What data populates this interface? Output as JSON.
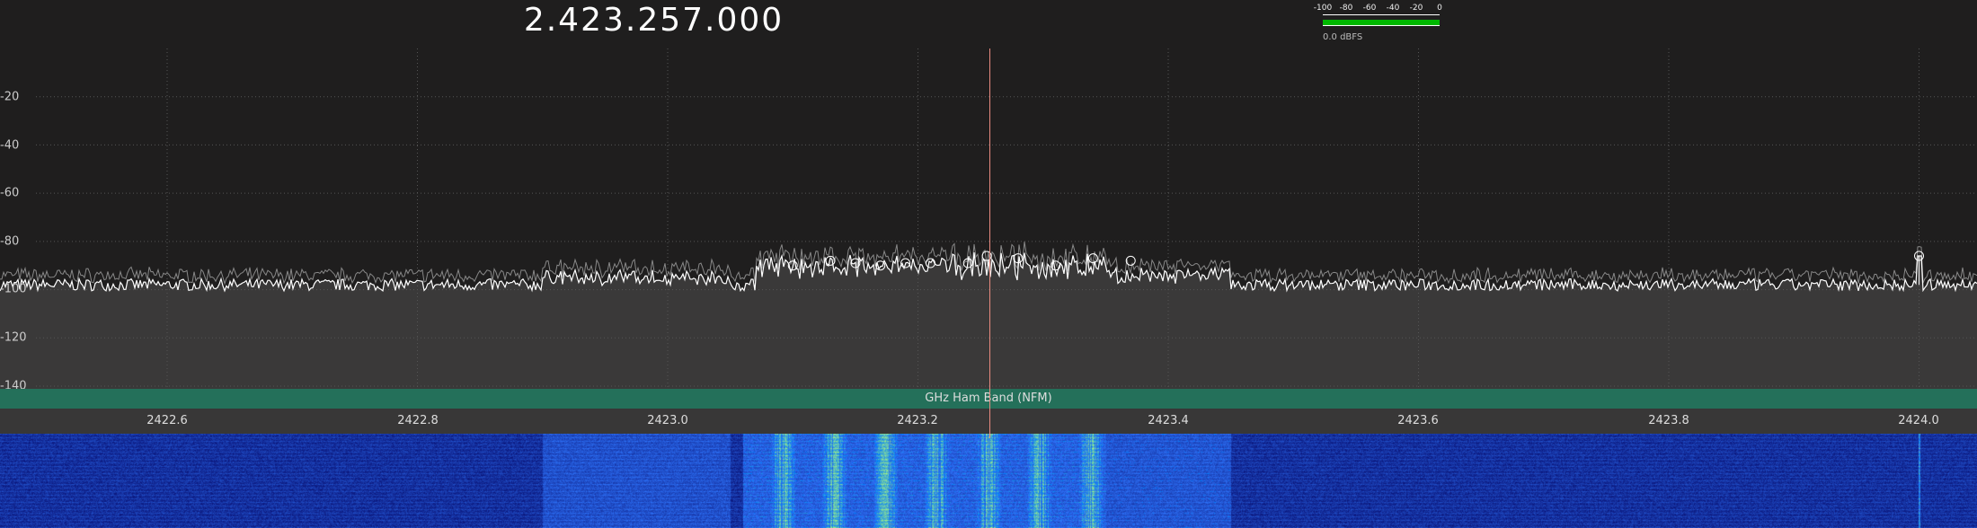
{
  "frequency_display": "2.423.257.000",
  "audio_meter": {
    "ticks": [
      "-100",
      "-80",
      "-60",
      "-40",
      "-20",
      "0"
    ],
    "level_label": "0.0 dBFS",
    "level_fraction": 1.0,
    "color": "#00b800"
  },
  "band_plan": {
    "label": "GHz Ham Band (NFM)",
    "color": "#24705a"
  },
  "tuned_frequency_mhz": 2423.257,
  "chart_data": {
    "type": "line",
    "xlabel": "",
    "ylabel": "",
    "x_ticks": [
      "2422.6",
      "2422.8",
      "2423.0",
      "2423.2",
      "2423.4",
      "2423.6",
      "2423.8",
      "2424.0"
    ],
    "y_ticks": [
      "-20",
      "-40",
      "-60",
      "-80",
      "-100",
      "-120",
      "-140"
    ],
    "xlim": [
      2422.41,
      2424.06
    ],
    "ylim": [
      -140,
      0
    ],
    "grid": true,
    "noise_floor_db": -98,
    "signal_region_mhz": [
      2423.07,
      2423.35
    ],
    "peaks": [
      {
        "x": 2423.1,
        "y": -90
      },
      {
        "x": 2423.13,
        "y": -88
      },
      {
        "x": 2423.15,
        "y": -89
      },
      {
        "x": 2423.17,
        "y": -90
      },
      {
        "x": 2423.19,
        "y": -89
      },
      {
        "x": 2423.21,
        "y": -89
      },
      {
        "x": 2423.24,
        "y": -89
      },
      {
        "x": 2423.255,
        "y": -86
      },
      {
        "x": 2423.28,
        "y": -87
      },
      {
        "x": 2423.31,
        "y": -90
      },
      {
        "x": 2423.34,
        "y": -87
      },
      {
        "x": 2423.37,
        "y": -88
      },
      {
        "x": 2424.0,
        "y": -86
      }
    ],
    "trace_color": "#ffffff",
    "fill_color": "#3a3939"
  }
}
